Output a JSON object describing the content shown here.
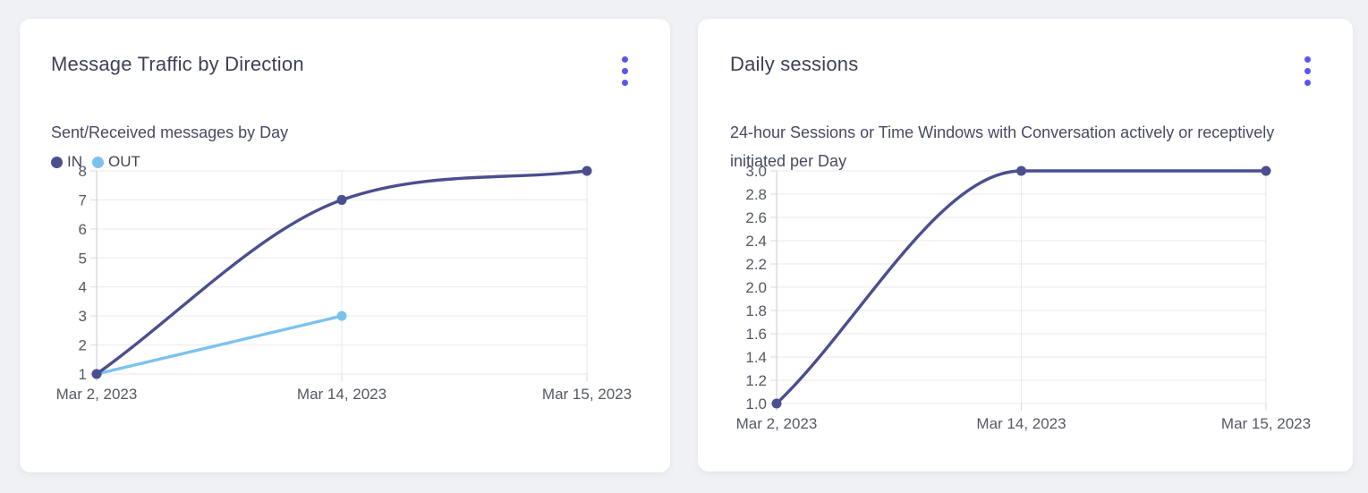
{
  "page": {
    "background": "#f0f1f5"
  },
  "colors": {
    "accent": "#5a55f2",
    "card_background": "#ffffff"
  },
  "cards": [
    {
      "name": "message-traffic",
      "menu_icon": "kebab-menu-icon"
    },
    {
      "name": "daily-sessions",
      "menu_icon": "kebab-menu-icon"
    }
  ],
  "chart_data": [
    {
      "type": "line",
      "title": "Message Traffic by Direction",
      "subtitle": "Sent/Received messages by Day",
      "categories": [
        "Mar 2, 2023",
        "Mar 14, 2023",
        "Mar 15, 2023"
      ],
      "series": [
        {
          "name": "IN",
          "color": "#4b4e8f",
          "values": [
            1,
            7,
            8
          ]
        },
        {
          "name": "OUT",
          "color": "#7cc2ef",
          "values": [
            1,
            3,
            null
          ]
        }
      ],
      "ylim": [
        1,
        8
      ],
      "yticks": [
        1,
        2,
        3,
        4,
        5,
        6,
        7,
        8
      ],
      "ytick_labels": [
        "1",
        "2",
        "3",
        "4",
        "5",
        "6",
        "7",
        "8"
      ],
      "grid": true,
      "legend_position": "top-left"
    },
    {
      "type": "line",
      "title": "Daily sessions",
      "subtitle": "24-hour Sessions or Time Windows with Conversation actively or receptively initiated per Day",
      "categories": [
        "Mar 2, 2023",
        "Mar 14, 2023",
        "Mar 15, 2023"
      ],
      "series": [
        {
          "color": "#4b4e8f",
          "values": [
            1,
            3,
            3
          ]
        }
      ],
      "ylim": [
        1,
        3
      ],
      "yticks": [
        1,
        1.2,
        1.4,
        1.6,
        1.8,
        2,
        2.2,
        2.4,
        2.6,
        2.8,
        3
      ],
      "ytick_labels": [
        "1.0",
        "1.2",
        "1.4",
        "1.6",
        "1.8",
        "2.0",
        "2.2",
        "2.4",
        "2.6",
        "2.8",
        "3.0"
      ],
      "grid": true,
      "legend_position": "none"
    }
  ]
}
